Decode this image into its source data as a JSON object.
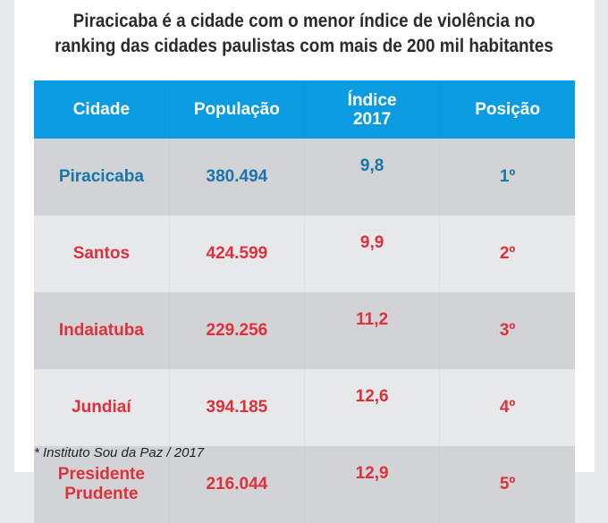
{
  "title": {
    "line1": "Piracicaba é a cidade com o menor índice de violência no",
    "line2": "ranking das cidades paulistas com mais de 200 mil habitantes"
  },
  "chart_data": {
    "type": "table",
    "columns": [
      "Cidade",
      "População",
      "Índice 2017",
      "Posição"
    ],
    "rows": [
      {
        "cidade": "Piracicaba",
        "populacao": "380.494",
        "indice": "9,8",
        "posicao": "1º",
        "color": "#1b75a8"
      },
      {
        "cidade": "Santos",
        "populacao": "424.599",
        "indice": "9,9",
        "posicao": "2º",
        "color": "#e0303a"
      },
      {
        "cidade": "Indaiatuba",
        "populacao": "229.256",
        "indice": "11,2",
        "posicao": "3º",
        "color": "#e0303a"
      },
      {
        "cidade": "Jundiaí",
        "populacao": "394.185",
        "indice": "12,6",
        "posicao": "4º",
        "color": "#e0303a"
      },
      {
        "cidade": "Presidente Prudente",
        "populacao": "216.044",
        "indice": "12,9",
        "posicao": "5º",
        "color": "#e0303a"
      }
    ]
  },
  "header": {
    "cidade": "Cidade",
    "populacao": "População",
    "indice_l1": "Índice",
    "indice_l2": "2017",
    "posicao": "Posição"
  },
  "footnote": "* Instituto Sou da Paz / 2017",
  "colors": {
    "header": "#0b9be0",
    "highlight": "#1b75a8",
    "other": "#e0303a"
  }
}
